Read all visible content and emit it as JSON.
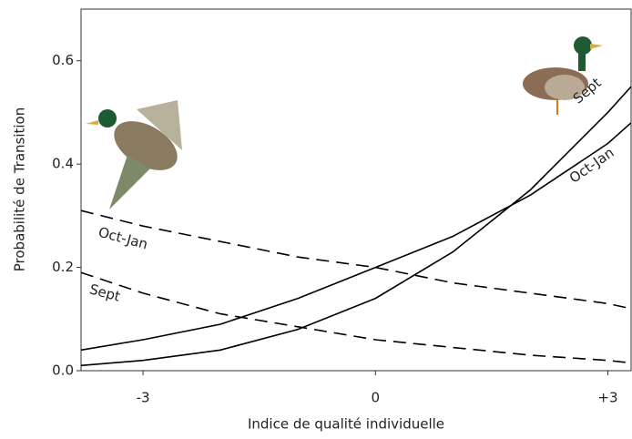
{
  "chart_data": {
    "type": "line",
    "x_label": "Indice de qualité individuelle",
    "y_label": "Probabilité de Transition",
    "x": [
      -3.8,
      -3,
      -2,
      -1,
      0,
      1,
      2,
      3,
      3.3
    ],
    "series": [
      {
        "name": "Sept",
        "color": "#000000",
        "dashed": false,
        "values": [
          0.01,
          0.02,
          0.04,
          0.08,
          0.14,
          0.23,
          0.35,
          0.5,
          0.55
        ]
      },
      {
        "name": "Oct-Jan",
        "color": "#000000",
        "dashed": false,
        "values": [
          0.04,
          0.06,
          0.09,
          0.14,
          0.2,
          0.26,
          0.34,
          0.44,
          0.48
        ]
      },
      {
        "name": "Oct-Jan",
        "color": "#000000",
        "dashed": true,
        "values": [
          0.31,
          0.28,
          0.25,
          0.22,
          0.2,
          0.17,
          0.15,
          0.13,
          0.12
        ]
      },
      {
        "name": "Sept",
        "color": "#000000",
        "dashed": true,
        "values": [
          0.19,
          0.15,
          0.11,
          0.085,
          0.06,
          0.045,
          0.03,
          0.02,
          0.015
        ]
      }
    ],
    "xlim": [
      -3.8,
      3.3
    ],
    "ylim": [
      0,
      0.7
    ],
    "xticks": [
      -3,
      0,
      {
        "value": 3,
        "label": "+3"
      }
    ],
    "yticks": [
      {
        "value": 0,
        "label": "0.0"
      },
      0.2,
      0.4,
      0.6
    ]
  }
}
